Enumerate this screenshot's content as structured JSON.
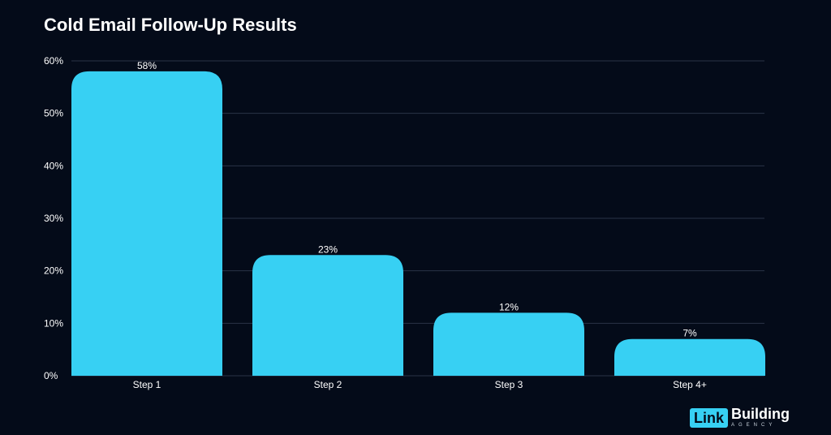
{
  "chart_data": {
    "type": "bar",
    "title": "Cold Email Follow-Up Results",
    "categories": [
      "Step 1",
      "Step 2",
      "Step 3",
      "Step 4+"
    ],
    "values": [
      58,
      23,
      12,
      7
    ],
    "data_labels": [
      "58%",
      "23%",
      "12%",
      "7%"
    ],
    "ylim": [
      0,
      60
    ],
    "yticks": [
      0,
      10,
      20,
      30,
      40,
      50,
      60
    ],
    "ytick_labels": [
      "0%",
      "10%",
      "20%",
      "30%",
      "40%",
      "50%",
      "60%"
    ],
    "xlabel": "",
    "ylabel": "",
    "grid": "horizontal",
    "legend": "none"
  },
  "colors": {
    "background": "#040b19",
    "bar": "#37d0f3",
    "grid": "#2a3347",
    "text": "#ffffff"
  },
  "brand": {
    "logo_box_text": "Link",
    "logo_word": "Building",
    "logo_sub": "AGENCY"
  }
}
